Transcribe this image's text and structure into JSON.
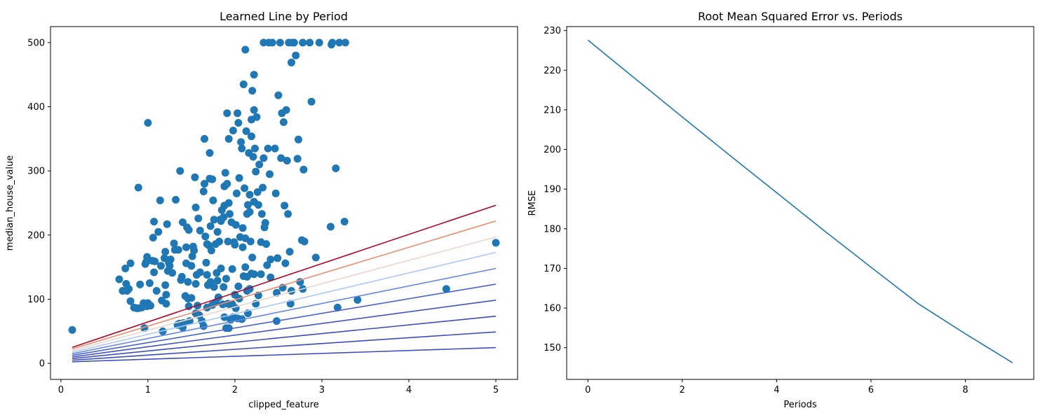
{
  "chart_data": [
    {
      "type": "scatter",
      "title": "Learned Line by Period",
      "xlabel": "clipped_feature",
      "ylabel": "median_house_value",
      "xlim": [
        -0.12,
        5.25
      ],
      "ylim": [
        -25,
        525
      ],
      "xticks": [
        0,
        1,
        2,
        3,
        4,
        5
      ],
      "yticks": [
        0,
        100,
        200,
        300,
        400,
        500
      ],
      "grid": false,
      "legend": "none",
      "point_color": "#1f77b4",
      "points": [
        [
          0.13,
          52
        ],
        [
          0.67,
          131
        ],
        [
          0.71,
          113
        ],
        [
          0.74,
          148
        ],
        [
          0.75,
          124
        ],
        [
          0.76,
          113
        ],
        [
          0.78,
          116
        ],
        [
          0.8,
          156
        ],
        [
          0.8,
          97
        ],
        [
          0.84,
          87
        ],
        [
          0.87,
          86
        ],
        [
          0.89,
          86
        ],
        [
          0.89,
          274
        ],
        [
          0.91,
          123
        ],
        [
          0.93,
          87
        ],
        [
          0.95,
          94
        ],
        [
          0.96,
          55
        ],
        [
          0.97,
          155
        ],
        [
          0.98,
          158
        ],
        [
          0.99,
          166
        ],
        [
          0.99,
          89
        ],
        [
          1.0,
          94
        ],
        [
          1.0,
          375
        ],
        [
          1.02,
          125
        ],
        [
          1.03,
          90
        ],
        [
          1.05,
          160
        ],
        [
          1.06,
          196
        ],
        [
          1.07,
          221
        ],
        [
          1.07,
          142
        ],
        [
          1.08,
          159
        ],
        [
          1.1,
          113
        ],
        [
          1.12,
          205
        ],
        [
          1.14,
          254
        ],
        [
          1.15,
          152
        ],
        [
          1.16,
          98
        ],
        [
          1.17,
          50
        ],
        [
          1.19,
          164
        ],
        [
          1.2,
          174
        ],
        [
          1.2,
          122
        ],
        [
          1.21,
          107
        ],
        [
          1.21,
          93
        ],
        [
          1.22,
          217
        ],
        [
          1.23,
          144
        ],
        [
          1.24,
          157
        ],
        [
          1.25,
          152
        ],
        [
          1.26,
          162
        ],
        [
          1.28,
          141
        ],
        [
          1.3,
          187
        ],
        [
          1.31,
          177
        ],
        [
          1.32,
          255
        ],
        [
          1.34,
          60
        ],
        [
          1.35,
          177
        ],
        [
          1.36,
          62
        ],
        [
          1.37,
          300
        ],
        [
          1.38,
          130
        ],
        [
          1.39,
          135
        ],
        [
          1.4,
          220
        ],
        [
          1.4,
          56
        ],
        [
          1.41,
          63
        ],
        [
          1.43,
          105
        ],
        [
          1.44,
          181
        ],
        [
          1.44,
          156
        ],
        [
          1.45,
          212
        ],
        [
          1.46,
          101
        ],
        [
          1.46,
          127
        ],
        [
          1.47,
          89
        ],
        [
          1.47,
          208
        ],
        [
          1.48,
          66
        ],
        [
          1.5,
          152
        ],
        [
          1.51,
          167
        ],
        [
          1.52,
          182
        ],
        [
          1.53,
          176
        ],
        [
          1.54,
          290
        ],
        [
          1.55,
          243
        ],
        [
          1.55,
          124
        ],
        [
          1.56,
          138
        ],
        [
          1.57,
          90
        ],
        [
          1.58,
          226
        ],
        [
          1.59,
          75
        ],
        [
          1.6,
          207
        ],
        [
          1.6,
          142
        ],
        [
          1.64,
          58
        ],
        [
          1.64,
          268
        ],
        [
          1.65,
          350
        ],
        [
          1.65,
          280
        ],
        [
          1.66,
          198
        ],
        [
          1.67,
          157
        ],
        [
          1.68,
          186
        ],
        [
          1.68,
          138
        ],
        [
          1.69,
          122
        ],
        [
          1.7,
          184
        ],
        [
          1.71,
          288
        ],
        [
          1.71,
          328
        ],
        [
          1.72,
          214
        ],
        [
          1.72,
          127
        ],
        [
          1.73,
          176
        ],
        [
          1.74,
          287
        ],
        [
          1.75,
          254
        ],
        [
          1.76,
          119
        ],
        [
          1.76,
          224
        ],
        [
          1.78,
          95
        ],
        [
          1.78,
          186
        ],
        [
          1.79,
          141
        ],
        [
          1.8,
          205
        ],
        [
          1.8,
          129
        ],
        [
          1.81,
          103
        ],
        [
          1.82,
          190
        ],
        [
          1.83,
          224
        ],
        [
          1.84,
          222
        ],
        [
          1.85,
          239
        ],
        [
          1.86,
          92
        ],
        [
          1.87,
          228
        ],
        [
          1.87,
          119
        ],
        [
          1.88,
          276
        ],
        [
          1.88,
          246
        ],
        [
          1.89,
          297
        ],
        [
          1.9,
          132
        ],
        [
          1.91,
          280
        ],
        [
          1.91,
          390
        ],
        [
          1.92,
          190
        ],
        [
          1.93,
          350
        ],
        [
          1.93,
          250
        ],
        [
          1.94,
          233
        ],
        [
          1.95,
          91
        ],
        [
          1.96,
          220
        ],
        [
          1.97,
          147
        ],
        [
          1.98,
          363
        ],
        [
          1.99,
          189
        ],
        [
          2.0,
          185
        ],
        [
          2.01,
          216
        ],
        [
          2.02,
          265
        ],
        [
          2.03,
          390
        ],
        [
          2.04,
          375
        ],
        [
          2.05,
          289
        ],
        [
          2.06,
          197
        ],
        [
          2.07,
          345
        ],
        [
          2.08,
          335
        ],
        [
          2.09,
          211
        ],
        [
          2.1,
          435
        ],
        [
          2.11,
          273
        ],
        [
          2.12,
          150
        ],
        [
          2.12,
          489
        ],
        [
          2.13,
          362
        ],
        [
          2.14,
          233
        ],
        [
          2.15,
          247
        ],
        [
          2.16,
          328
        ],
        [
          2.17,
          263
        ],
        [
          2.18,
          190
        ],
        [
          2.19,
          380
        ],
        [
          2.19,
          354
        ],
        [
          2.2,
          425
        ],
        [
          2.21,
          322
        ],
        [
          2.22,
          395
        ],
        [
          2.22,
          450
        ],
        [
          2.23,
          335
        ],
        [
          2.24,
          299
        ],
        [
          2.25,
          384
        ],
        [
          2.26,
          267
        ],
        [
          2.27,
          247
        ],
        [
          2.28,
          310
        ],
        [
          2.3,
          189
        ],
        [
          2.31,
          233
        ],
        [
          2.32,
          274
        ],
        [
          2.33,
          500
        ],
        [
          2.33,
          320
        ],
        [
          2.34,
          212
        ],
        [
          2.35,
          219
        ],
        [
          2.36,
          186
        ],
        [
          2.37,
          153
        ],
        [
          2.38,
          335
        ],
        [
          2.39,
          500
        ],
        [
          2.4,
          295
        ],
        [
          2.41,
          134
        ],
        [
          2.41,
          162
        ],
        [
          2.43,
          500
        ],
        [
          2.46,
          335
        ],
        [
          2.47,
          265
        ],
        [
          2.48,
          110
        ],
        [
          2.48,
          66
        ],
        [
          2.49,
          164
        ],
        [
          2.5,
          418
        ],
        [
          2.52,
          500
        ],
        [
          2.53,
          320
        ],
        [
          2.54,
          390
        ],
        [
          2.55,
          118
        ],
        [
          2.56,
          376
        ],
        [
          2.57,
          246
        ],
        [
          2.58,
          156
        ],
        [
          2.59,
          395
        ],
        [
          2.6,
          316
        ],
        [
          2.61,
          233
        ],
        [
          2.62,
          500
        ],
        [
          2.63,
          174
        ],
        [
          2.64,
          93
        ],
        [
          2.65,
          113
        ],
        [
          2.65,
          469
        ],
        [
          2.66,
          500
        ],
        [
          2.68,
          500
        ],
        [
          2.7,
          480
        ],
        [
          2.72,
          319
        ],
        [
          2.73,
          349
        ],
        [
          2.75,
          127
        ],
        [
          2.77,
          192
        ],
        [
          2.78,
          116
        ],
        [
          2.78,
          500
        ],
        [
          2.79,
          302
        ],
        [
          2.8,
          190
        ],
        [
          2.86,
          500
        ],
        [
          2.88,
          408
        ],
        [
          2.93,
          165
        ],
        [
          2.97,
          500
        ],
        [
          3.1,
          213
        ],
        [
          3.11,
          497
        ],
        [
          3.12,
          500
        ],
        [
          3.16,
          304
        ],
        [
          3.18,
          87
        ],
        [
          3.2,
          500
        ],
        [
          3.26,
          221
        ],
        [
          3.27,
          500
        ],
        [
          3.41,
          99
        ],
        [
          4.43,
          116
        ],
        [
          5.0,
          188
        ],
        [
          1.88,
          72
        ],
        [
          1.9,
          55
        ],
        [
          1.93,
          55
        ],
        [
          1.95,
          68
        ],
        [
          1.98,
          72
        ],
        [
          2.01,
          86
        ],
        [
          2.03,
          70
        ],
        [
          2.05,
          101
        ],
        [
          2.08,
          69
        ],
        [
          2.1,
          136
        ],
        [
          2.14,
          113
        ],
        [
          2.15,
          78
        ],
        [
          2.17,
          116
        ],
        [
          2.19,
          140
        ],
        [
          2.22,
          139
        ],
        [
          2.24,
          93
        ],
        [
          2.27,
          106
        ],
        [
          2.3,
          139
        ],
        [
          2.14,
          135
        ],
        [
          2.2,
          165
        ],
        [
          2.0,
          107
        ],
        [
          2.04,
          120
        ],
        [
          1.97,
          92
        ],
        [
          1.92,
          93
        ],
        [
          2.09,
          181
        ],
        [
          2.12,
          195
        ],
        [
          2.22,
          252
        ],
        [
          2.17,
          236
        ],
        [
          1.84,
          148
        ],
        [
          1.74,
          91
        ],
        [
          1.68,
          87
        ],
        [
          1.62,
          66
        ],
        [
          1.55,
          78
        ],
        [
          1.5,
          102
        ]
      ],
      "lines_x": [
        0.13,
        5.0
      ],
      "lines": [
        {
          "y": [
            2.5,
            24.5
          ],
          "color": "#3b4cc0"
        },
        {
          "y": [
            5,
            49
          ],
          "color": "#3b4cc0"
        },
        {
          "y": [
            7.5,
            73.5
          ],
          "color": "#3b4cc0"
        },
        {
          "y": [
            10,
            98.5
          ],
          "color": "#3f53c6"
        },
        {
          "y": [
            12.5,
            123.5
          ],
          "color": "#4961d2"
        },
        {
          "y": [
            15,
            148
          ],
          "color": "#6485ec"
        },
        {
          "y": [
            17.5,
            173
          ],
          "color": "#aac7fd"
        },
        {
          "y": [
            20,
            197
          ],
          "color": "#e9d5cb"
        },
        {
          "y": [
            22.5,
            222
          ],
          "color": "#ec8d6f"
        },
        {
          "y": [
            25,
            246.5
          ],
          "color": "#b40426"
        }
      ]
    },
    {
      "type": "line",
      "title": "Root Mean Squared Error vs. Periods",
      "xlabel": "Periods",
      "ylabel": "RMSE",
      "xlim": [
        -0.45,
        9.45
      ],
      "ylim": [
        142,
        231
      ],
      "xticks": [
        0,
        2,
        4,
        6,
        8
      ],
      "yticks": [
        150,
        160,
        170,
        180,
        190,
        200,
        210,
        220,
        230
      ],
      "grid": false,
      "legend": "none",
      "line_color": "#1f77b4",
      "x": [
        0,
        1,
        2,
        3,
        4,
        5,
        6,
        7,
        8,
        9
      ],
      "values": [
        227.6,
        217.9,
        208.2,
        198.6,
        189.1,
        179.6,
        170.3,
        161.1,
        153.5,
        146.2
      ]
    }
  ]
}
